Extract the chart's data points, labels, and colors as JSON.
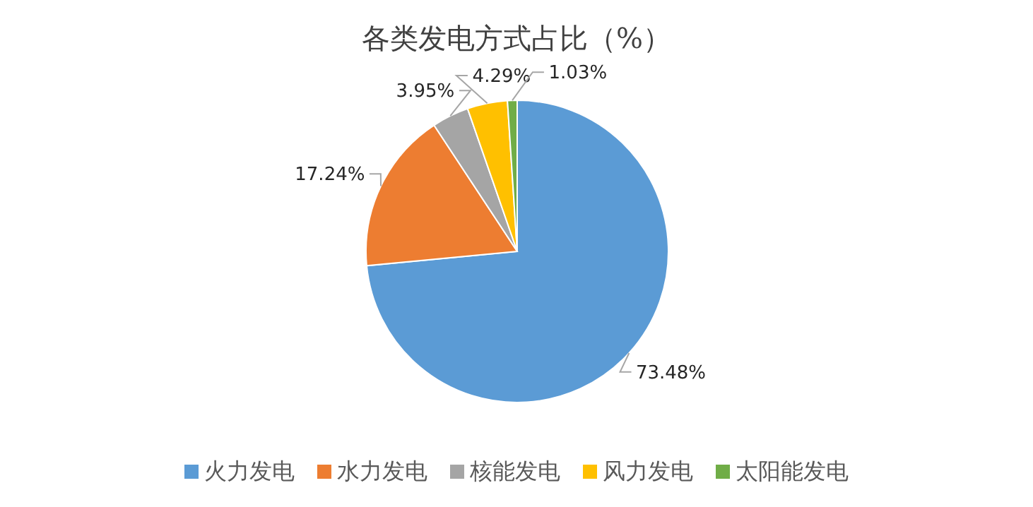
{
  "chart_data": {
    "type": "pie",
    "title": "各类发电方式占比（%）",
    "categories": [
      "火力发电",
      "水力发电",
      "核能发电",
      "风力发电",
      "太阳能发电"
    ],
    "values": [
      73.48,
      17.24,
      3.95,
      4.29,
      1.03
    ],
    "value_labels": [
      "73.48%",
      "17.24%",
      "3.95%",
      "4.29%",
      "1.03%"
    ],
    "colors": [
      "#5b9bd5",
      "#ed7d31",
      "#a5a5a5",
      "#ffc000",
      "#70ad47"
    ],
    "legend": "bottom"
  }
}
